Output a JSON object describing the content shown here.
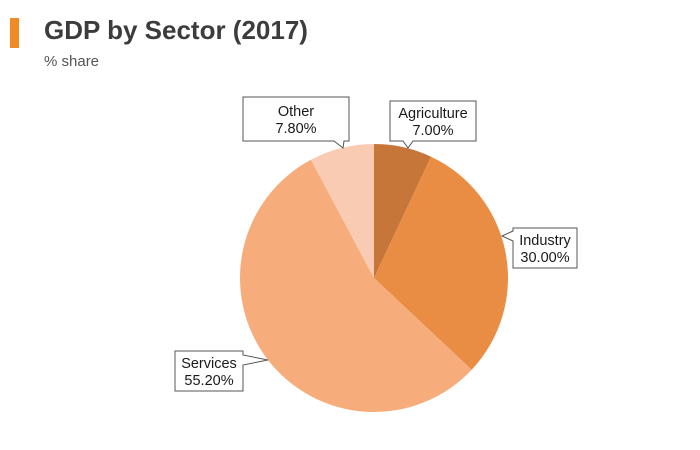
{
  "header": {
    "title": "GDP by Sector (2017)",
    "subtitle": "% share"
  },
  "colors": {
    "accent": "#f08a24",
    "agriculture": "#c57638",
    "industry": "#e98d44",
    "services": "#f7ac7b",
    "other": "#f9cbb3"
  },
  "chart_data": {
    "type": "pie",
    "title": "GDP by Sector (2017)",
    "subtitle": "% share",
    "start_angle": "12 o'clock",
    "direction": "clockwise",
    "slices": [
      {
        "label": "Agriculture",
        "value": 7.0,
        "value_label": "7.00%",
        "color": "#c57638"
      },
      {
        "label": "Industry",
        "value": 30.0,
        "value_label": "30.00%",
        "color": "#e98d44"
      },
      {
        "label": "Services",
        "value": 55.2,
        "value_label": "55.20%",
        "color": "#f7ac7b"
      },
      {
        "label": "Other",
        "value": 7.8,
        "value_label": "7.80%",
        "color": "#f9cbb3"
      }
    ]
  }
}
